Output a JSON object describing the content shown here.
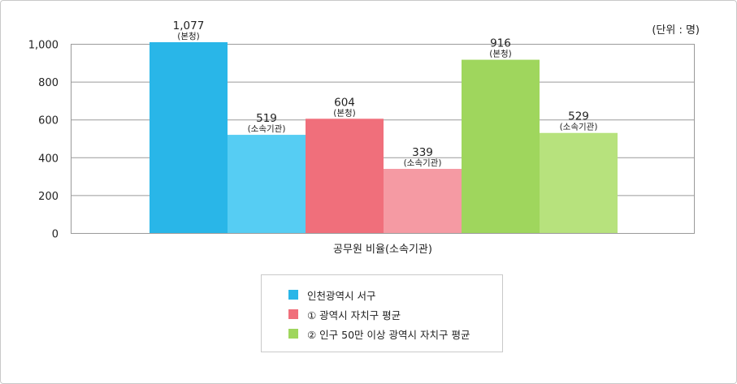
{
  "unit_label": "(단위 : 명)",
  "colors": {
    "incheon_main": "#29b6e8",
    "incheon_sub": "#56cdf3",
    "metro_main": "#f06f7b",
    "metro_sub": "#f59aa3",
    "large_main": "#9fd65d",
    "large_sub": "#b7e27d",
    "grid": "#9a9a9a"
  },
  "legend": [
    {
      "label": "인천광역시 서구",
      "color": "#29b6e8"
    },
    {
      "label": "① 광역시 자치구 평균",
      "color": "#f06f7b"
    },
    {
      "label": "② 인구 50만 이상 광역시 자치구 평균",
      "color": "#9fd65d"
    }
  ],
  "chart_data": {
    "type": "bar",
    "title": "",
    "xlabel": "공무원 비율(소속기관)",
    "ylabel": "",
    "ylim": [
      0,
      1000
    ],
    "yticks": [
      "0",
      "200",
      "400",
      "600",
      "800",
      "1,000"
    ],
    "grid": true,
    "legend_position": "bottom-center",
    "bars": [
      {
        "series": "인천광역시 서구",
        "value": 1077,
        "label": "1,077",
        "sublabel": "(본청)",
        "color": "#29b6e8"
      },
      {
        "series": "인천광역시 서구",
        "value": 519,
        "label": "519",
        "sublabel": "(소속기관)",
        "color": "#56cdf3"
      },
      {
        "series": "① 광역시 자치구 평균",
        "value": 604,
        "label": "604",
        "sublabel": "(본청)",
        "color": "#f06f7b"
      },
      {
        "series": "① 광역시 자치구 평균",
        "value": 339,
        "label": "339",
        "sublabel": "(소속기관)",
        "color": "#f59aa3"
      },
      {
        "series": "② 인구 50만 이상 광역시 자치구 평균",
        "value": 916,
        "label": "916",
        "sublabel": "(본청)",
        "color": "#9fd65d"
      },
      {
        "series": "② 인구 50만 이상 광역시 자치구 평균",
        "value": 529,
        "label": "529",
        "sublabel": "(소속기관)",
        "color": "#b7e27d"
      }
    ]
  }
}
